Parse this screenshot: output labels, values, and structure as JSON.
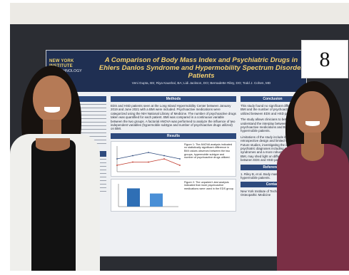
{
  "poster": {
    "logo_line1": "NEW YORK INSTITUTE",
    "logo_line2": "OF TECHNOLOGY",
    "title_line1": "A Comparison of Body Mass Index and Psychiatric Drugs in",
    "title_line2": "Ehlers Danlos Syndrome and Hypermobility Spectrum Disorder Patients",
    "authors": "Veni Gupta, BS; Riya Kaushal, BA; Lidi Jackson, DO; Bernadette Riley, DO; Todd J. Cohen, MD",
    "sections": {
      "methods_heading": "Methods",
      "results_heading": "Results",
      "conclusion_heading": "Conclusion",
      "references_heading": "References",
      "contact_heading": "Contact"
    },
    "methods_text": "EDS and HSD patients seen at the Long Island Hypermobility Center between January 2019 and June 2021 with a BMI were included. Psychoactive medications were categorized using the NIH National Library of Medicine. The number of psychoactive drugs taken was quantified for each patient. BMI was compared in a continuous variable between the two groups. A factorial ANOVA was performed to analyze the influence of two independent variables (hypermobile subtype and number of psychoactive drugs utilized) on BMI.",
    "results_fig1_caption": "Figure 1: The ANOVA analysis indicated no statistically significant difference in BMI values observed between the two groups, hypermobile subtype and number of psychoactive drugs utilized.",
    "results_fig2_caption": "Figure 2: The unpaired t-test analysis indicated that more psychoactive medications were used in the EDS group.",
    "conclusion_text_1": "This study found no significant difference in BMI and the number of psychoactive drugs utilized between EDS and HSD patients.",
    "conclusion_text_2": "The study allows clinicians to better understand the interplay between psychoactive medications and BMI in hypermobile patients.",
    "limitations_text": "Limitations of the study include its retrospective design and limited sample size. Future studies, investigating the incidence of psychiatric diagnoses including pain syndromes and a more robust correlation with BMI, may shed light on differences that exist between EDS and HSD patients.",
    "references_text": "1. Riley B, et al. Body mass index in hypermobile patients.",
    "contact_text": "New York Institute of Technology College of Osteopathic Medicine"
  },
  "placard_number": "8",
  "chart_data": [
    {
      "type": "line",
      "title": "",
      "series": [
        {
          "values": [
            27,
            28,
            29,
            28,
            27
          ]
        },
        {
          "values": [
            25,
            26,
            26,
            27,
            25
          ]
        }
      ]
    },
    {
      "type": "bar",
      "title": "",
      "categories": [
        "",
        ""
      ],
      "values": [
        3.2,
        2.3
      ]
    }
  ],
  "colors": {
    "poster_header": "#1f2f52",
    "title_gold": "#f4d06f",
    "section_blue": "#2e4a7d"
  }
}
